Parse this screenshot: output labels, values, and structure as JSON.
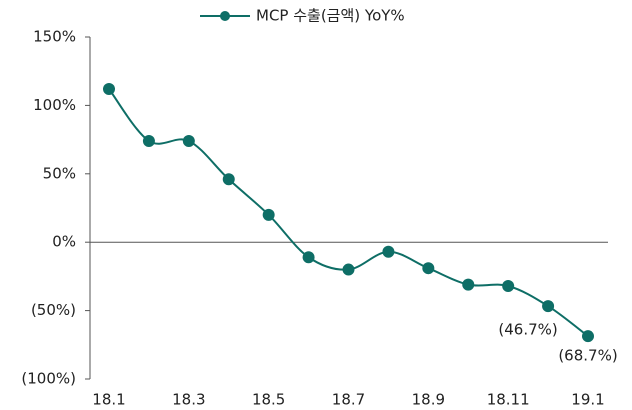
{
  "chart_data": {
    "type": "line",
    "categories": [
      "18.1",
      null,
      "18.3",
      null,
      "18.5",
      null,
      "18.7",
      null,
      "18.9",
      null,
      "18.11",
      null,
      "19.1"
    ],
    "series": [
      {
        "name": "MCP 수출(금액) YoY%",
        "color": "#0e6e66",
        "values": [
          112,
          74,
          74,
          46,
          20,
          -11,
          -20,
          -7,
          -19,
          -31,
          -32,
          -46.7,
          -68.7
        ],
        "value_labels": [
          null,
          null,
          null,
          null,
          null,
          null,
          null,
          null,
          null,
          null,
          null,
          "(46.7%)",
          "(68.7%)"
        ]
      }
    ],
    "ylim": [
      -100,
      150
    ],
    "yticks": [
      {
        "value": 150,
        "label": "150%"
      },
      {
        "value": 100,
        "label": "100%"
      },
      {
        "value": 50,
        "label": "50%"
      },
      {
        "value": 0,
        "label": "0%"
      },
      {
        "value": -50,
        "label": "(50%)"
      },
      {
        "value": -100,
        "label": "(100%)"
      }
    ],
    "legend": "top"
  }
}
